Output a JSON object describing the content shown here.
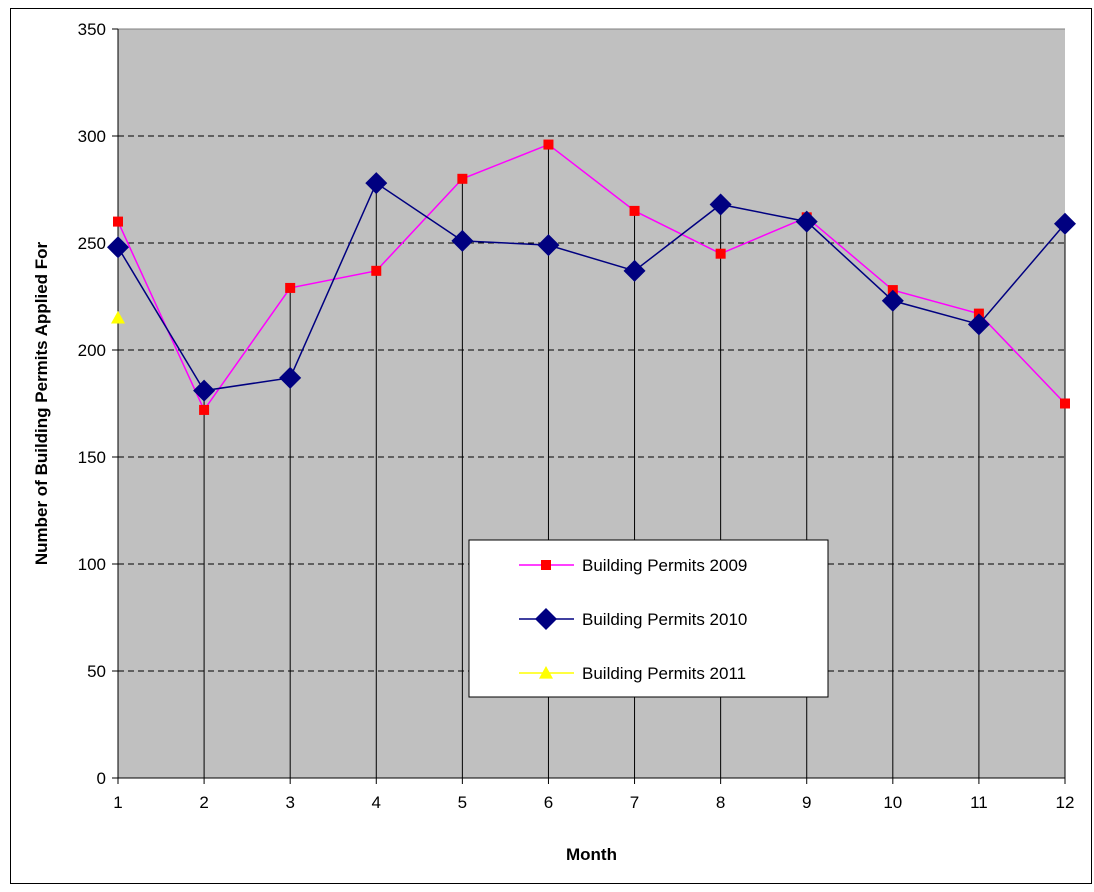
{
  "chart_data": {
    "type": "line",
    "title": "",
    "xlabel": "Month",
    "ylabel": "Number of Building Permits Applied For",
    "x": [
      1,
      2,
      3,
      4,
      5,
      6,
      7,
      8,
      9,
      10,
      11,
      12
    ],
    "xticks": [
      "1",
      "2",
      "3",
      "4",
      "5",
      "6",
      "7",
      "8",
      "9",
      "10",
      "11",
      "12"
    ],
    "ylim": [
      0,
      350
    ],
    "yticks": [
      "0",
      "50",
      "100",
      "150",
      "200",
      "250",
      "300",
      "350"
    ],
    "grid": "horizontal dashed, with vertical drop lines at each month",
    "legend_placement": "center",
    "plot_background": "#c0c0c0",
    "series": [
      {
        "name": "Building Permits 2009",
        "color": "#ff00ff",
        "marker_color": "#ff0000",
        "marker": "square",
        "values": [
          260,
          172,
          229,
          237,
          280,
          296,
          265,
          245,
          262,
          228,
          217,
          175
        ]
      },
      {
        "name": "Building Permits 2010",
        "color": "#000080",
        "marker_color": "#000080",
        "marker": "diamond",
        "values": [
          248,
          181,
          187,
          278,
          251,
          249,
          237,
          268,
          260,
          223,
          212,
          259
        ]
      },
      {
        "name": "Building Permits 2011",
        "color": "#ffff00",
        "marker_color": "#ffff00",
        "marker": "triangle",
        "values": [
          215,
          null,
          null,
          null,
          null,
          null,
          null,
          null,
          null,
          null,
          null,
          null
        ]
      }
    ]
  }
}
